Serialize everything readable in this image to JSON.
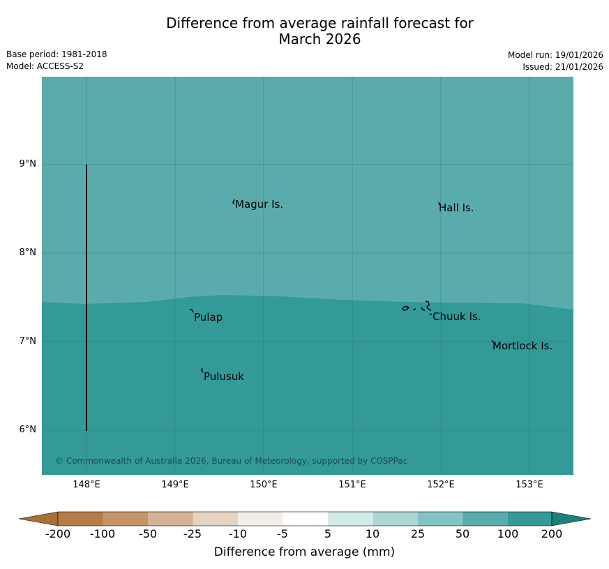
{
  "title_line1": "Difference from average rainfall forecast for",
  "title_line2": "March 2026",
  "base_period": "Base period: 1981-2018",
  "model": "Model: ACCESS-S2",
  "model_run": "Model run: 19/01/2026",
  "issued": "Issued: 21/01/2026",
  "copyright": "© Commonwealth of Australia 2026, Bureau of Meteorology, supported by COSPPac",
  "latitude_ticks": [
    "9°N",
    "8°N",
    "7°N",
    "6°N"
  ],
  "longitude_ticks": [
    "148°E",
    "149°E",
    "150°E",
    "151°E",
    "152°E",
    "153°E"
  ],
  "place_labels": {
    "magur": "Magur Is.",
    "hall": "Hall Is.",
    "pulap": "Pulap",
    "chuuk": "Chuuk Is.",
    "mortlock": "Mortlock Is.",
    "pulusuk": "Pulusuk"
  },
  "legend": {
    "title": "Difference from average (mm)",
    "labels": [
      "-200",
      "-100",
      "-50",
      "-25",
      "-10",
      "-5",
      "5",
      "10",
      "25",
      "50",
      "100",
      "200"
    ],
    "colors": [
      "#a96f35",
      "#b57c44",
      "#c49468",
      "#d5b292",
      "#e5d3c3",
      "#f1eee8",
      "#ffffff",
      "#d3ebe8",
      "#abd6d3",
      "#82c4c1",
      "#5aacac",
      "#339a98",
      "#1f7f7c"
    ]
  },
  "map_colors": {
    "zone_50_100": "#5aacac",
    "zone_100_200": "#339a98",
    "grid": "#2c7272"
  }
}
